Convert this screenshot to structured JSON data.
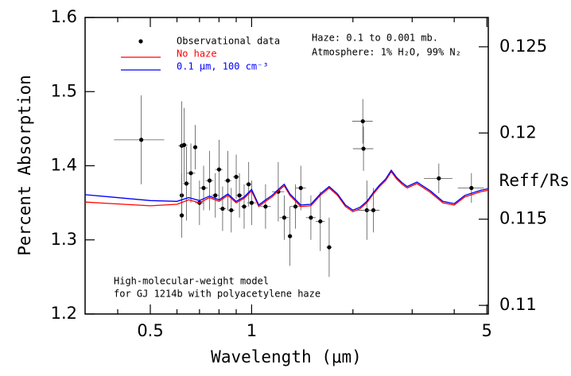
{
  "chart_data": {
    "type": "scatter",
    "xlabel": "Wavelength (μm)",
    "ylabel": "Percent Absorption",
    "y2label": "Reff/Rs",
    "xscale": "log",
    "xlim": [
      0.32,
      5.05
    ],
    "xticks": [
      0.5,
      1,
      5
    ],
    "xminorticks": [
      0.4,
      0.6,
      0.7,
      0.8,
      0.9,
      2,
      3,
      4
    ],
    "ylim": [
      1.2,
      1.6
    ],
    "yticks": [
      1.2,
      1.3,
      1.4,
      1.5,
      1.6
    ],
    "y2lim": [
      0.1095,
      0.1267
    ],
    "y2ticks": [
      0.11,
      0.115,
      0.12,
      0.125
    ],
    "annotations": [
      "Haze: 0.1 to 0.001 mb.",
      "Atmosphere: 1% H₂O, 99% N₂",
      "High-molecular-weight model",
      "for GJ 1214b with polyacetylene haze"
    ],
    "series": [
      {
        "name": "Observational data",
        "color": "#000000",
        "x": [
          0.47,
          0.62,
          0.63,
          0.64,
          0.62,
          0.62,
          0.66,
          0.68,
          0.7,
          0.72,
          0.75,
          0.78,
          0.8,
          0.82,
          0.85,
          0.87,
          0.9,
          0.92,
          0.95,
          0.98,
          1.0,
          1.1,
          1.2,
          1.25,
          1.3,
          1.35,
          1.4,
          1.5,
          1.6,
          1.7,
          2.14,
          2.15,
          2.2,
          2.3,
          3.6,
          4.5
        ],
        "y": [
          1.435,
          1.427,
          1.428,
          1.376,
          1.36,
          1.333,
          1.39,
          1.425,
          1.35,
          1.37,
          1.38,
          1.36,
          1.395,
          1.342,
          1.38,
          1.34,
          1.385,
          1.36,
          1.345,
          1.375,
          1.35,
          1.345,
          1.365,
          1.33,
          1.305,
          1.345,
          1.37,
          1.33,
          1.325,
          1.29,
          1.46,
          1.423,
          1.34,
          1.34,
          1.383,
          1.37
        ],
        "xerr": [
          0.08,
          0.015,
          0.015,
          0.015,
          0.01,
          0.01,
          0.02,
          0.01,
          0.02,
          0.02,
          0.02,
          0.02,
          0.02,
          0.02,
          0.02,
          0.02,
          0.02,
          0.02,
          0.02,
          0.02,
          0.03,
          0.04,
          0.05,
          0.04,
          0.02,
          0.05,
          0.05,
          0.05,
          0.05,
          0.03,
          0.15,
          0.15,
          0.15,
          0.1,
          0.35,
          0.4
        ],
        "yerr": [
          0.06,
          0.06,
          0.05,
          0.05,
          0.03,
          0.03,
          0.04,
          0.03,
          0.03,
          0.03,
          0.04,
          0.03,
          0.04,
          0.03,
          0.04,
          0.03,
          0.03,
          0.03,
          0.03,
          0.03,
          0.03,
          0.03,
          0.04,
          0.03,
          0.04,
          0.03,
          0.03,
          0.03,
          0.04,
          0.04,
          0.03,
          0.03,
          0.04,
          0.03,
          0.02,
          0.02
        ]
      },
      {
        "name": "No haze",
        "color": "#ff0000",
        "type": "line",
        "x": [
          0.32,
          0.5,
          0.6,
          0.65,
          0.7,
          0.75,
          0.8,
          0.85,
          0.9,
          0.95,
          1.0,
          1.05,
          1.1,
          1.15,
          1.2,
          1.25,
          1.3,
          1.4,
          1.5,
          1.6,
          1.7,
          1.8,
          1.9,
          2.0,
          2.1,
          2.2,
          2.3,
          2.4,
          2.5,
          2.6,
          2.7,
          2.8,
          2.9,
          3.1,
          3.4,
          3.7,
          4.0,
          4.3,
          4.8,
          5.05
        ],
        "y": [
          1.351,
          1.346,
          1.348,
          1.354,
          1.35,
          1.357,
          1.352,
          1.36,
          1.35,
          1.356,
          1.366,
          1.345,
          1.352,
          1.358,
          1.366,
          1.373,
          1.36,
          1.345,
          1.346,
          1.36,
          1.37,
          1.36,
          1.345,
          1.338,
          1.342,
          1.35,
          1.362,
          1.372,
          1.38,
          1.392,
          1.382,
          1.375,
          1.37,
          1.376,
          1.364,
          1.35,
          1.347,
          1.358,
          1.365,
          1.367
        ]
      },
      {
        "name": "0.1 μm, 100 cm⁻³",
        "color": "#0000ff",
        "type": "line",
        "x": [
          0.32,
          0.5,
          0.6,
          0.65,
          0.7,
          0.75,
          0.8,
          0.85,
          0.9,
          0.95,
          1.0,
          1.05,
          1.1,
          1.15,
          1.2,
          1.25,
          1.3,
          1.4,
          1.5,
          1.6,
          1.7,
          1.8,
          1.9,
          2.0,
          2.1,
          2.2,
          2.3,
          2.4,
          2.5,
          2.6,
          2.7,
          2.8,
          2.9,
          3.1,
          3.4,
          3.7,
          4.0,
          4.3,
          4.8,
          5.05
        ],
        "y": [
          1.361,
          1.353,
          1.352,
          1.357,
          1.353,
          1.359,
          1.354,
          1.362,
          1.352,
          1.358,
          1.368,
          1.347,
          1.354,
          1.36,
          1.368,
          1.375,
          1.362,
          1.347,
          1.348,
          1.362,
          1.372,
          1.362,
          1.347,
          1.34,
          1.344,
          1.352,
          1.364,
          1.374,
          1.382,
          1.394,
          1.384,
          1.377,
          1.372,
          1.378,
          1.366,
          1.352,
          1.349,
          1.36,
          1.367,
          1.369
        ]
      }
    ]
  }
}
